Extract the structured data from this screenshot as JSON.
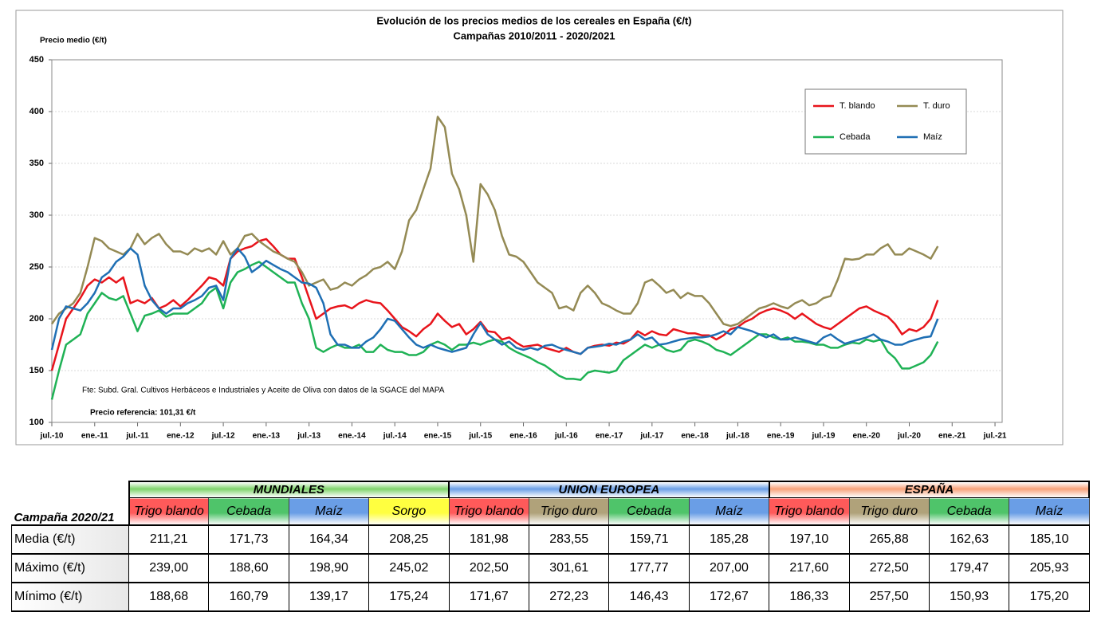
{
  "chart_data": {
    "type": "line",
    "title": "Evolución de los precios medios de los cereales en España (€/t)",
    "subtitle": "Campañas 2010/2011 - 2020/2021",
    "y_label": "Precio medio (€/t)",
    "annotations": [
      "Fte: Subd. Gral. Cultivos Herbáceos e Industriales y Aceite de Oliva con datos de la SGACE del MAPA",
      "Precio referencia: 101,31 €/t"
    ],
    "legend": "upper right",
    "grid": true,
    "ylim": [
      100,
      450
    ],
    "yticks": [
      100,
      150,
      200,
      250,
      300,
      350,
      400,
      450
    ],
    "xlim": [
      "2010-07",
      "2021-08"
    ],
    "xticks": [
      {
        "value": "2010-07",
        "label": "jul.-10"
      },
      {
        "value": "2011-01",
        "label": "ene.-11"
      },
      {
        "value": "2011-07",
        "label": "jul.-11"
      },
      {
        "value": "2012-01",
        "label": "ene.-12"
      },
      {
        "value": "2012-07",
        "label": "jul.-12"
      },
      {
        "value": "2013-01",
        "label": "ene.-13"
      },
      {
        "value": "2013-07",
        "label": "jul.-13"
      },
      {
        "value": "2014-01",
        "label": "ene.-14"
      },
      {
        "value": "2014-07",
        "label": "jul.-14"
      },
      {
        "value": "2015-01",
        "label": "ene.-15"
      },
      {
        "value": "2015-07",
        "label": "jul.-15"
      },
      {
        "value": "2016-01",
        "label": "ene.-16"
      },
      {
        "value": "2016-07",
        "label": "jul.-16"
      },
      {
        "value": "2017-01",
        "label": "ene.-17"
      },
      {
        "value": "2017-07",
        "label": "jul.-17"
      },
      {
        "value": "2018-01",
        "label": "ene.-18"
      },
      {
        "value": "2018-07",
        "label": "jul.-18"
      },
      {
        "value": "2019-01",
        "label": "ene.-19"
      },
      {
        "value": "2019-07",
        "label": "jul.-19"
      },
      {
        "value": "2020-01",
        "label": "ene.-20"
      },
      {
        "value": "2020-07",
        "label": "jul.-20"
      },
      {
        "value": "2021-01",
        "label": "ene.-21"
      },
      {
        "value": "2021-07",
        "label": "jul.-21"
      }
    ],
    "x": [
      "2010-07",
      "2010-08",
      "2010-09",
      "2010-10",
      "2010-11",
      "2010-12",
      "2011-01",
      "2011-02",
      "2011-03",
      "2011-04",
      "2011-05",
      "2011-06",
      "2011-07",
      "2011-08",
      "2011-09",
      "2011-10",
      "2011-11",
      "2011-12",
      "2012-01",
      "2012-02",
      "2012-03",
      "2012-04",
      "2012-05",
      "2012-06",
      "2012-07",
      "2012-08",
      "2012-09",
      "2012-10",
      "2012-11",
      "2012-12",
      "2013-01",
      "2013-02",
      "2013-03",
      "2013-04",
      "2013-05",
      "2013-06",
      "2013-07",
      "2013-08",
      "2013-09",
      "2013-10",
      "2013-11",
      "2013-12",
      "2014-01",
      "2014-02",
      "2014-03",
      "2014-04",
      "2014-05",
      "2014-06",
      "2014-07",
      "2014-08",
      "2014-09",
      "2014-10",
      "2014-11",
      "2014-12",
      "2015-01",
      "2015-02",
      "2015-03",
      "2015-04",
      "2015-05",
      "2015-06",
      "2015-07",
      "2015-08",
      "2015-09",
      "2015-10",
      "2015-11",
      "2015-12",
      "2016-01",
      "2016-02",
      "2016-03",
      "2016-04",
      "2016-05",
      "2016-06",
      "2016-07",
      "2016-08",
      "2016-09",
      "2016-10",
      "2016-11",
      "2016-12",
      "2017-01",
      "2017-02",
      "2017-03",
      "2017-04",
      "2017-05",
      "2017-06",
      "2017-07",
      "2017-08",
      "2017-09",
      "2017-10",
      "2017-11",
      "2017-12",
      "2018-01",
      "2018-02",
      "2018-03",
      "2018-04",
      "2018-05",
      "2018-06",
      "2018-07",
      "2018-08",
      "2018-09",
      "2018-10",
      "2018-11",
      "2018-12",
      "2019-01",
      "2019-02",
      "2019-03",
      "2019-04",
      "2019-05",
      "2019-06",
      "2019-07",
      "2019-08",
      "2019-09",
      "2019-10",
      "2019-11",
      "2019-12",
      "2020-01",
      "2020-02",
      "2020-03",
      "2020-04",
      "2020-05",
      "2020-06",
      "2020-07",
      "2020-08",
      "2020-09",
      "2020-10",
      "2020-11"
    ],
    "series": [
      {
        "name": "T. blando",
        "color": "#e8141b",
        "values": [
          150,
          175,
          200,
          210,
          220,
          232,
          238,
          235,
          240,
          235,
          240,
          215,
          218,
          215,
          220,
          210,
          213,
          218,
          212,
          218,
          225,
          232,
          240,
          238,
          232,
          258,
          265,
          268,
          270,
          275,
          277,
          270,
          262,
          258,
          258,
          240,
          220,
          200,
          205,
          210,
          212,
          213,
          210,
          215,
          218,
          216,
          215,
          208,
          200,
          192,
          188,
          183,
          190,
          195,
          205,
          198,
          192,
          195,
          185,
          190,
          197,
          188,
          187,
          180,
          182,
          177,
          173,
          174,
          175,
          172,
          170,
          168,
          172,
          168,
          166,
          172,
          174,
          175,
          174,
          177,
          176,
          180,
          188,
          184,
          188,
          185,
          184,
          190,
          188,
          186,
          186,
          184,
          184,
          180,
          184,
          190,
          192,
          197,
          200,
          205,
          208,
          210,
          208,
          205,
          200,
          205,
          200,
          195,
          192,
          190,
          195,
          200,
          205,
          210,
          212,
          208,
          205,
          202,
          195,
          185,
          190,
          188,
          192,
          200,
          218
        ]
      },
      {
        "name": "T. duro",
        "color": "#948a54",
        "values": [
          195,
          205,
          210,
          215,
          225,
          250,
          278,
          275,
          268,
          265,
          262,
          268,
          282,
          272,
          278,
          282,
          272,
          265,
          265,
          262,
          268,
          265,
          268,
          262,
          275,
          262,
          268,
          280,
          282,
          275,
          270,
          265,
          262,
          258,
          255,
          245,
          232,
          235,
          238,
          228,
          230,
          235,
          232,
          238,
          242,
          248,
          250,
          255,
          248,
          265,
          295,
          305,
          325,
          345,
          395,
          385,
          340,
          325,
          300,
          255,
          330,
          320,
          305,
          280,
          262,
          260,
          255,
          245,
          235,
          230,
          225,
          210,
          212,
          208,
          225,
          232,
          225,
          215,
          212,
          208,
          205,
          205,
          215,
          235,
          238,
          232,
          225,
          228,
          220,
          225,
          222,
          222,
          215,
          205,
          195,
          193,
          195,
          200,
          205,
          210,
          212,
          215,
          212,
          210,
          215,
          218,
          213,
          215,
          220,
          222,
          238,
          258,
          257,
          258,
          262,
          262,
          268,
          272,
          262,
          262,
          268,
          265,
          262,
          258,
          270
        ]
      },
      {
        "name": "Cebada",
        "color": "#1fb255",
        "values": [
          122,
          150,
          175,
          180,
          185,
          205,
          215,
          225,
          220,
          218,
          222,
          205,
          188,
          203,
          205,
          208,
          202,
          205,
          205,
          205,
          210,
          215,
          225,
          230,
          210,
          235,
          245,
          248,
          252,
          255,
          250,
          245,
          240,
          235,
          235,
          215,
          200,
          172,
          168,
          172,
          175,
          172,
          172,
          175,
          168,
          168,
          175,
          170,
          168,
          168,
          165,
          165,
          168,
          175,
          178,
          175,
          170,
          175,
          175,
          177,
          175,
          178,
          180,
          178,
          172,
          168,
          165,
          162,
          158,
          155,
          150,
          145,
          142,
          142,
          141,
          148,
          150,
          149,
          148,
          150,
          160,
          165,
          170,
          175,
          172,
          175,
          170,
          168,
          170,
          178,
          180,
          178,
          175,
          170,
          168,
          165,
          170,
          175,
          180,
          185,
          185,
          182,
          180,
          182,
          178,
          178,
          177,
          175,
          175,
          172,
          172,
          175,
          177,
          176,
          180,
          178,
          180,
          168,
          162,
          152,
          152,
          155,
          158,
          165,
          178
        ]
      },
      {
        "name": "Maíz",
        "color": "#1f6fb4",
        "values": [
          170,
          200,
          212,
          210,
          208,
          215,
          225,
          240,
          245,
          255,
          260,
          268,
          262,
          232,
          218,
          210,
          205,
          210,
          210,
          215,
          218,
          222,
          230,
          232,
          218,
          258,
          268,
          260,
          245,
          250,
          256,
          252,
          248,
          245,
          240,
          235,
          234,
          230,
          215,
          185,
          175,
          175,
          172,
          172,
          178,
          182,
          190,
          200,
          198,
          190,
          182,
          175,
          172,
          175,
          172,
          170,
          168,
          170,
          172,
          185,
          196,
          185,
          180,
          175,
          178,
          172,
          170,
          172,
          170,
          174,
          175,
          172,
          170,
          168,
          166,
          172,
          173,
          174,
          176,
          175,
          178,
          180,
          185,
          180,
          182,
          175,
          176,
          178,
          180,
          181,
          182,
          182,
          183,
          185,
          188,
          185,
          192,
          190,
          188,
          185,
          182,
          185,
          180,
          180,
          182,
          180,
          178,
          176,
          182,
          185,
          180,
          176,
          178,
          180,
          182,
          185,
          180,
          178,
          175,
          175,
          178,
          180,
          182,
          183,
          200
        ]
      }
    ]
  },
  "table": {
    "corner": "Campaña 2020/21",
    "groups": [
      {
        "name": "MUNDIALES",
        "color": "#7fd36b",
        "columns": [
          {
            "name": "Trigo blando",
            "color": "#ff5a5a"
          },
          {
            "name": "Cebada",
            "color": "#4fc46a"
          },
          {
            "name": "Maíz",
            "color": "#6a9ee6"
          },
          {
            "name": "Sorgo",
            "color": "#ffff40"
          }
        ]
      },
      {
        "name": "UNION EUROPEA",
        "color": "#6a9ee6",
        "columns": [
          {
            "name": "Trigo blando",
            "color": "#ff5a5a"
          },
          {
            "name": "Trigo duro",
            "color": "#b0a27a"
          },
          {
            "name": "Cebada",
            "color": "#4fc46a"
          },
          {
            "name": "Maíz",
            "color": "#6a9ee6"
          }
        ]
      },
      {
        "name": "ESPAÑA",
        "color": "#f7a27a",
        "columns": [
          {
            "name": "Trigo blando",
            "color": "#ff5a5a"
          },
          {
            "name": "Trigo duro",
            "color": "#b0a27a"
          },
          {
            "name": "Cebada",
            "color": "#4fc46a"
          },
          {
            "name": "Maíz",
            "color": "#6a9ee6"
          }
        ]
      }
    ],
    "rows": [
      {
        "label": "Media (€/t)",
        "cells": [
          "211,21",
          "171,73",
          "164,34",
          "208,25",
          "181,98",
          "283,55",
          "159,71",
          "185,28",
          "197,10",
          "265,88",
          "162,63",
          "185,10"
        ]
      },
      {
        "label": "Máximo (€/t)",
        "cells": [
          "239,00",
          "188,60",
          "198,90",
          "245,02",
          "202,50",
          "301,61",
          "177,77",
          "207,00",
          "217,60",
          "272,50",
          "179,47",
          "205,93"
        ]
      },
      {
        "label": "Mínimo (€/t)",
        "cells": [
          "188,68",
          "160,79",
          "139,17",
          "175,24",
          "171,67",
          "272,23",
          "146,43",
          "172,67",
          "186,33",
          "257,50",
          "150,93",
          "175,20"
        ]
      }
    ]
  }
}
